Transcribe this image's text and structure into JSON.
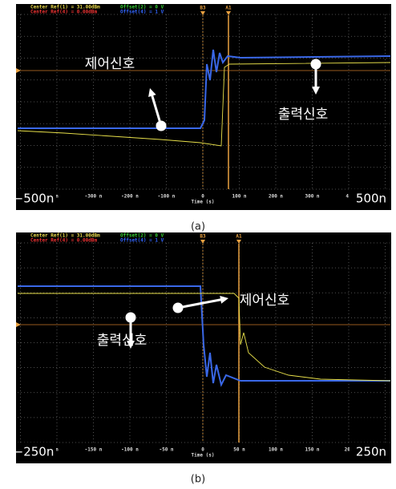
{
  "panels": [
    {
      "header": [
        "Center Ref(1) = 31.00dBm",
        "Center Ref(4) = 0.00dBm",
        "Offset(2) = 0 V",
        "Offset(4) = 1 V"
      ],
      "markers": [
        "B3",
        "A1"
      ],
      "ticks": [
        "n",
        "-300 n",
        "-200 n",
        "-100 n",
        "0",
        "100 n",
        "200 n",
        "300 n",
        "4("
      ],
      "axis_label": "Time (s)",
      "range": [
        "−500n",
        "500n"
      ],
      "annotations": [
        "제어신호",
        "출력신호"
      ],
      "caption": "(a)"
    },
    {
      "header": [
        "Center Ref(1) = 31.00dBm",
        "Center Ref(4) = 0.00dBm",
        "Offset(2) = 0 V",
        "Offset(4) = 1 V"
      ],
      "markers": [
        "B3",
        "A1"
      ],
      "ticks": [
        "n",
        "-150 n",
        "-100 n",
        "-50 n",
        "0",
        "50 n",
        "100 n",
        "150 n",
        "20("
      ],
      "axis_label": "Time (s)",
      "range": [
        "−250n",
        "250n"
      ],
      "annotations": [
        "제어신호",
        "출력신호"
      ],
      "caption": "(b)"
    }
  ]
}
